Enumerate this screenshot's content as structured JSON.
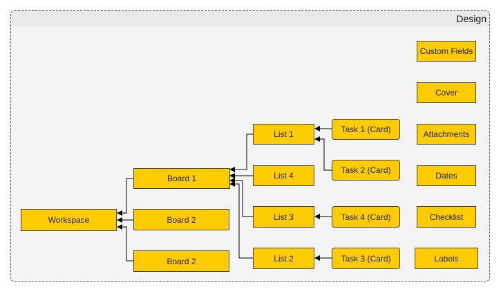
{
  "container": {
    "title": "Design"
  },
  "nodes": {
    "workspace": "Workspace",
    "board1": "Board 1",
    "board2a": "Board 2",
    "board2b": "Board 2",
    "list1": "List 1",
    "list4": "List 4",
    "list3": "List 3",
    "list2": "List 2",
    "task1": "Task 1 (Card)",
    "task2": "Task 2 (Card)",
    "task4": "Task 4 (Card)",
    "task3": "Task 3 (Card)",
    "custom_fields": "Custom Fields",
    "cover": "Cover",
    "attachments": "Attachments",
    "dates": "Dates",
    "checklist": "Checklist",
    "labels": "Labels"
  },
  "colors": {
    "node_fill": "#ffcc00",
    "stroke": "#000000",
    "frame_bg": "#f4f4f4"
  }
}
